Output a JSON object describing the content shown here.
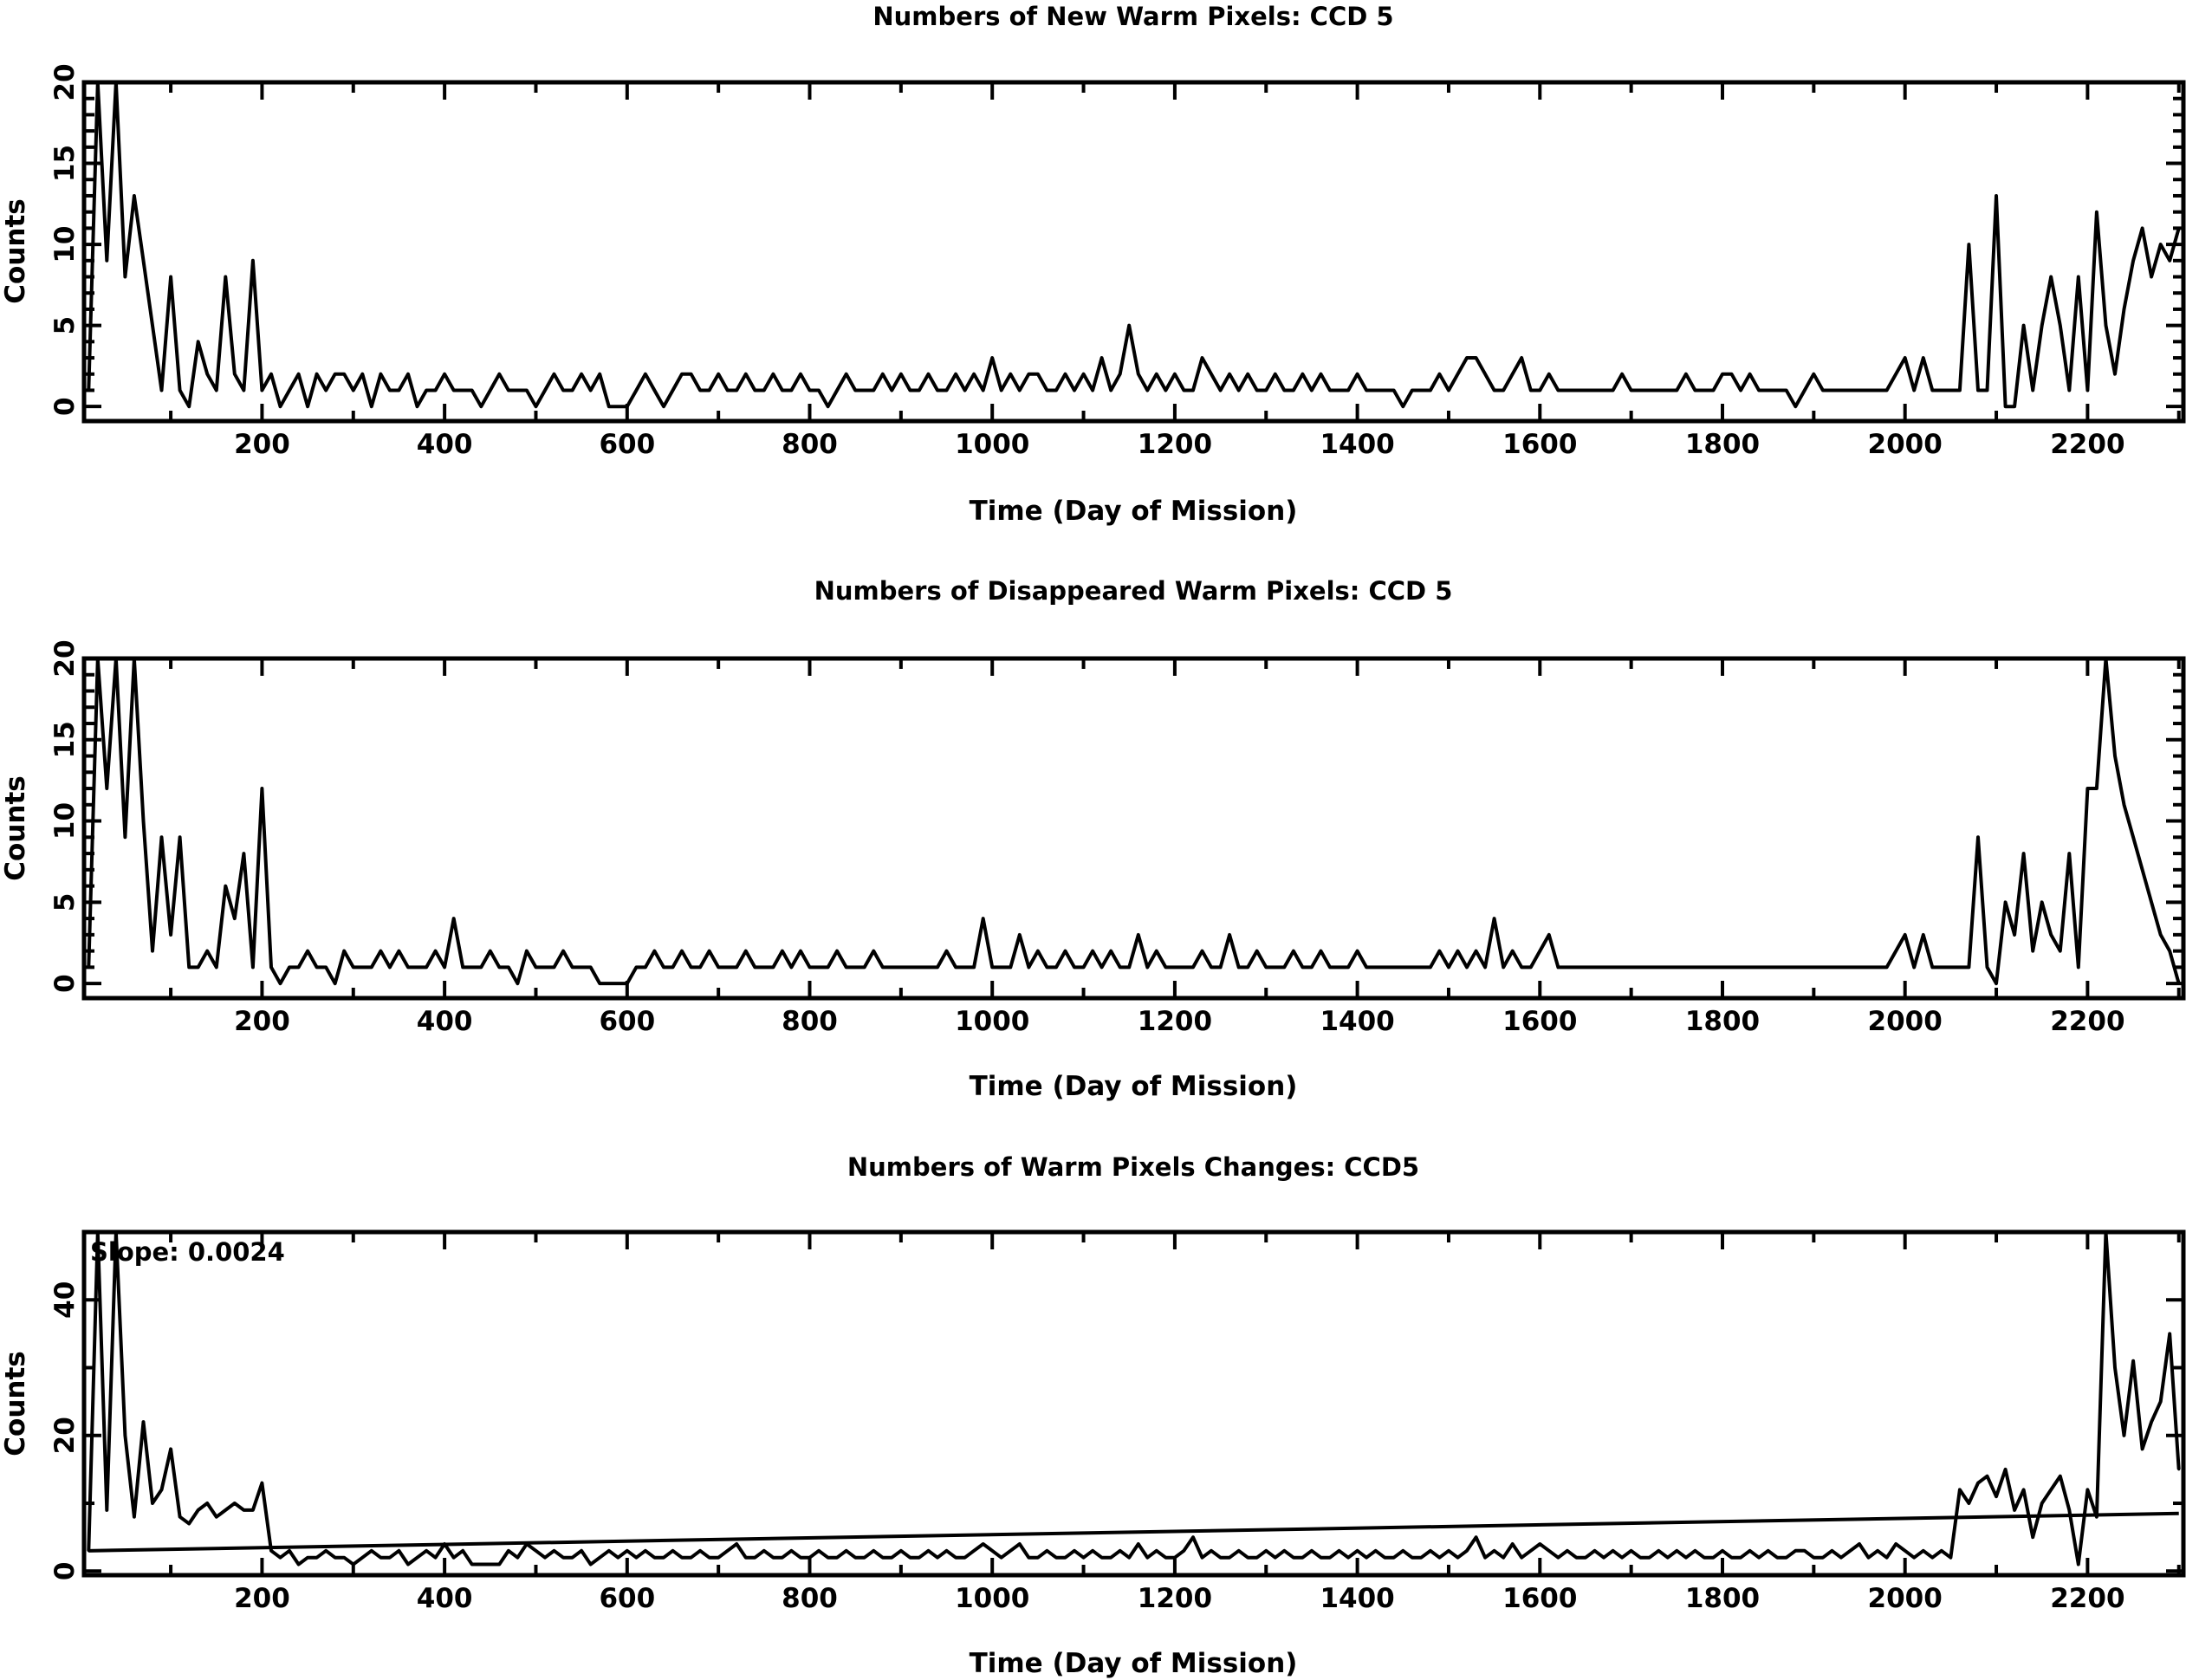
{
  "chart_data": [
    {
      "type": "line",
      "title": "Numbers of New Warm Pixels: CCD 5",
      "xlabel": "Time (Day of Mission)",
      "ylabel": "Counts",
      "xlim": [
        5,
        2305
      ],
      "ylim": [
        -0.9,
        20
      ],
      "xticks": [
        200,
        400,
        600,
        800,
        1000,
        1200,
        1400,
        1600,
        1800,
        2000,
        2200
      ],
      "yticks": [
        0,
        5,
        10,
        15,
        20
      ],
      "grid": false,
      "x_start": 10,
      "x_step": 10,
      "values": [
        1,
        20,
        9,
        20,
        8,
        13,
        9,
        5,
        1,
        8,
        1,
        0,
        4,
        2,
        1,
        8,
        2,
        1,
        9,
        1,
        2,
        0,
        1,
        2,
        0,
        2,
        1,
        2,
        2,
        1,
        2,
        0,
        2,
        1,
        1,
        2,
        0,
        1,
        1,
        2,
        1,
        1,
        1,
        0,
        1,
        2,
        1,
        1,
        1,
        0,
        1,
        2,
        1,
        1,
        2,
        1,
        2,
        0,
        0,
        0,
        1,
        2,
        1,
        0,
        1,
        2,
        2,
        1,
        1,
        2,
        1,
        1,
        2,
        1,
        1,
        2,
        1,
        1,
        2,
        1,
        1,
        0,
        1,
        2,
        1,
        1,
        1,
        2,
        1,
        2,
        1,
        1,
        2,
        1,
        1,
        2,
        1,
        2,
        1,
        3,
        1,
        2,
        1,
        2,
        2,
        1,
        1,
        2,
        1,
        2,
        1,
        3,
        1,
        2,
        5,
        2,
        1,
        2,
        1,
        2,
        1,
        1,
        3,
        2,
        1,
        2,
        1,
        2,
        1,
        1,
        2,
        1,
        1,
        2,
        1,
        2,
        1,
        1,
        1,
        2,
        1,
        1,
        1,
        1,
        0,
        1,
        1,
        1,
        2,
        1,
        2,
        3,
        3,
        2,
        1,
        1,
        2,
        3,
        1,
        1,
        2,
        1,
        1,
        1,
        1,
        1,
        1,
        1,
        2,
        1,
        1,
        1,
        1,
        1,
        1,
        2,
        1,
        1,
        1,
        2,
        2,
        1,
        2,
        1,
        1,
        1,
        1,
        0,
        1,
        2,
        1,
        1,
        1,
        1,
        1,
        1,
        1,
        1,
        2,
        3,
        1,
        3,
        1,
        1,
        1,
        1,
        10,
        1,
        1,
        13,
        0,
        0,
        5,
        1,
        5,
        8,
        5,
        1,
        8,
        1,
        12,
        5,
        2,
        6,
        9,
        11,
        8,
        10,
        9,
        11
      ]
    },
    {
      "type": "line",
      "title": "Numbers of Disappeared Warm Pixels: CCD 5",
      "xlabel": "Time (Day of Mission)",
      "ylabel": "Counts",
      "xlim": [
        5,
        2305
      ],
      "ylim": [
        -0.9,
        20
      ],
      "xticks": [
        200,
        400,
        600,
        800,
        1000,
        1200,
        1400,
        1600,
        1800,
        2000,
        2200
      ],
      "yticks": [
        0,
        5,
        10,
        15,
        20
      ],
      "grid": false,
      "x_start": 10,
      "x_step": 10,
      "values": [
        1,
        20,
        12,
        20,
        9,
        20,
        10,
        2,
        9,
        3,
        9,
        1,
        1,
        2,
        1,
        6,
        4,
        8,
        1,
        12,
        1,
        0,
        1,
        1,
        2,
        1,
        1,
        0,
        2,
        1,
        1,
        1,
        2,
        1,
        2,
        1,
        1,
        1,
        2,
        1,
        4,
        1,
        1,
        1,
        2,
        1,
        1,
        0,
        2,
        1,
        1,
        1,
        2,
        1,
        1,
        1,
        0,
        0,
        0,
        0,
        1,
        1,
        2,
        1,
        1,
        2,
        1,
        1,
        2,
        1,
        1,
        1,
        2,
        1,
        1,
        1,
        2,
        1,
        2,
        1,
        1,
        1,
        2,
        1,
        1,
        1,
        2,
        1,
        1,
        1,
        1,
        1,
        1,
        1,
        2,
        1,
        1,
        1,
        4,
        1,
        1,
        1,
        3,
        1,
        2,
        1,
        1,
        2,
        1,
        1,
        2,
        1,
        2,
        1,
        1,
        3,
        1,
        2,
        1,
        1,
        1,
        1,
        2,
        1,
        1,
        3,
        1,
        1,
        2,
        1,
        1,
        1,
        2,
        1,
        1,
        2,
        1,
        1,
        1,
        2,
        1,
        1,
        1,
        1,
        1,
        1,
        1,
        1,
        2,
        1,
        2,
        1,
        2,
        1,
        4,
        1,
        2,
        1,
        1,
        2,
        3,
        1,
        1,
        1,
        1,
        1,
        1,
        1,
        1,
        1,
        1,
        1,
        1,
        1,
        1,
        1,
        1,
        1,
        1,
        1,
        1,
        1,
        1,
        1,
        1,
        1,
        1,
        1,
        1,
        1,
        1,
        1,
        1,
        1,
        1,
        1,
        1,
        1,
        2,
        3,
        1,
        3,
        1,
        1,
        1,
        1,
        1,
        9,
        1,
        0,
        5,
        3,
        8,
        2,
        5,
        3,
        2,
        8,
        1,
        12,
        12,
        20,
        14,
        11,
        9,
        7,
        5,
        3,
        2,
        0
      ]
    },
    {
      "type": "line",
      "title": "Numbers of Warm Pixels Changes: CCD5",
      "xlabel": "Time (Day of Mission)",
      "ylabel": "Counts",
      "xlim": [
        5,
        2305
      ],
      "ylim": [
        -0.6,
        50
      ],
      "xticks": [
        200,
        400,
        600,
        800,
        1000,
        1200,
        1400,
        1600,
        1800,
        2000,
        2200
      ],
      "yticks": [
        0,
        20,
        40
      ],
      "grid": false,
      "annotation": "Slope: 0.0024",
      "fit_line": {
        "x": [
          10,
          2300
        ],
        "y": [
          3,
          8.5
        ]
      },
      "x_start": 10,
      "x_step": 10,
      "values": [
        3,
        50,
        9,
        50,
        20,
        8,
        22,
        10,
        12,
        18,
        8,
        7,
        9,
        10,
        8,
        9,
        10,
        9,
        9,
        13,
        3,
        2,
        3,
        1,
        2,
        2,
        3,
        2,
        2,
        1,
        2,
        3,
        2,
        2,
        3,
        1,
        2,
        3,
        2,
        4,
        2,
        3,
        1,
        1,
        1,
        1,
        3,
        2,
        4,
        3,
        2,
        3,
        2,
        2,
        3,
        1,
        2,
        3,
        2,
        3,
        2,
        3,
        2,
        2,
        3,
        2,
        2,
        3,
        2,
        2,
        3,
        4,
        2,
        2,
        3,
        2,
        2,
        3,
        2,
        2,
        3,
        2,
        2,
        3,
        2,
        2,
        3,
        2,
        2,
        3,
        2,
        2,
        3,
        2,
        3,
        2,
        2,
        3,
        4,
        3,
        2,
        3,
        4,
        2,
        2,
        3,
        2,
        2,
        3,
        2,
        3,
        2,
        2,
        3,
        2,
        4,
        2,
        3,
        2,
        2,
        3,
        5,
        2,
        3,
        2,
        2,
        3,
        2,
        2,
        3,
        2,
        3,
        2,
        2,
        3,
        2,
        2,
        3,
        2,
        3,
        2,
        3,
        2,
        2,
        3,
        2,
        2,
        3,
        2,
        3,
        2,
        3,
        5,
        2,
        3,
        2,
        4,
        2,
        3,
        4,
        3,
        2,
        3,
        2,
        2,
        3,
        2,
        3,
        2,
        3,
        2,
        2,
        3,
        2,
        3,
        2,
        3,
        2,
        2,
        3,
        2,
        2,
        3,
        2,
        3,
        2,
        2,
        3,
        3,
        2,
        2,
        3,
        2,
        3,
        4,
        2,
        3,
        2,
        4,
        3,
        2,
        3,
        2,
        3,
        2,
        12,
        10,
        13,
        14,
        11,
        15,
        9,
        12,
        5,
        10,
        12,
        14,
        9,
        1,
        12,
        8,
        50,
        30,
        20,
        31,
        18,
        22,
        25,
        35,
        15
      ]
    }
  ]
}
